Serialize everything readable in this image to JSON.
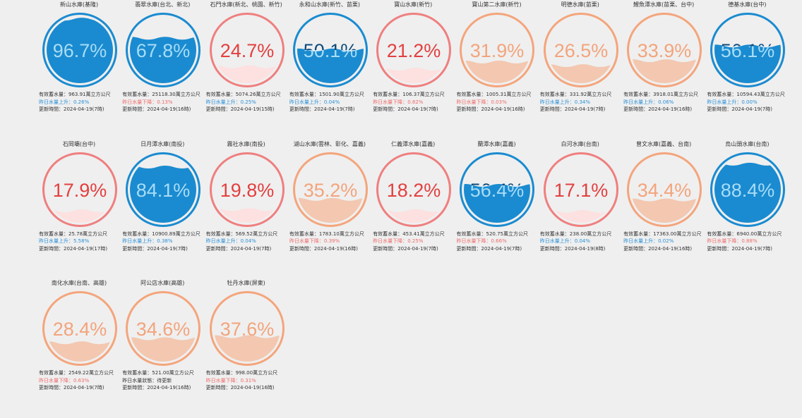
{
  "labels": {
    "storage_prefix": "有效蓄水量：",
    "storage_unit": "萬立方公尺",
    "up": "昨日水量上升：",
    "down": "昨日水量下降：",
    "status": "昨日水量狀態：",
    "updated": "更新時間："
  },
  "colors": {
    "high": "#1a8bd0",
    "mid": "#f4a57c",
    "low": "#ef7f7f",
    "background": "#efefef"
  },
  "reservoirs": [
    {
      "name": "新山水庫(基隆)",
      "percent": "96.7%",
      "value": 96.7,
      "storage": "963.91",
      "trend": "up",
      "change": "0.26%",
      "updated": "2024-04-19(7時)"
    },
    {
      "name": "翡翠水庫(台北、新北)",
      "percent": "67.8%",
      "value": 67.8,
      "storage": "25118.30",
      "trend": "down",
      "change": "0.13%",
      "updated": "2024-04-19(16時)"
    },
    {
      "name": "石門水庫(新北、桃園、新竹)",
      "percent": "24.7%",
      "value": 24.7,
      "storage": "5074.26",
      "trend": "up",
      "change": "0.25%",
      "updated": "2024-04-19(15時)"
    },
    {
      "name": "永和山水庫(新竹、苗栗)",
      "percent": "50.1%",
      "value": 50.1,
      "storage": "1501.90",
      "trend": "up",
      "change": "0.04%",
      "updated": "2024-04-19(7時)"
    },
    {
      "name": "寶山水庫(新竹)",
      "percent": "21.2%",
      "value": 21.2,
      "storage": "106.37",
      "trend": "down",
      "change": "0.82%",
      "updated": "2024-04-19(7時)"
    },
    {
      "name": "寶山第二水庫(新竹)",
      "percent": "31.9%",
      "value": 31.9,
      "storage": "1005.31",
      "trend": "down",
      "change": "0.03%",
      "updated": "2024-04-19(16時)"
    },
    {
      "name": "明德水庫(苗栗)",
      "percent": "26.5%",
      "value": 26.5,
      "storage": "331.92",
      "trend": "up",
      "change": "0.34%",
      "updated": "2024-04-19(7時)"
    },
    {
      "name": "鯉魚潭水庫(苗栗、台中)",
      "percent": "33.9%",
      "value": 33.9,
      "storage": "3918.01",
      "trend": "up",
      "change": "0.06%",
      "updated": "2024-04-19(16時)"
    },
    {
      "name": "德基水庫(台中)",
      "percent": "56.1%",
      "value": 56.1,
      "storage": "10594.43",
      "trend": "up",
      "change": "0.00%",
      "updated": "2024-04-19(7時)"
    },
    {
      "name": "石岡壩(台中)",
      "percent": "17.9%",
      "value": 17.9,
      "storage": "25.78",
      "trend": "up",
      "change": "5.58%",
      "updated": "2024-04-19(17時)"
    },
    {
      "name": "日月潭水庫(南投)",
      "percent": "84.1%",
      "value": 84.1,
      "storage": "10900.89",
      "trend": "up",
      "change": "0.38%",
      "updated": "2024-04-19(7時)"
    },
    {
      "name": "霧社水庫(南投)",
      "percent": "19.8%",
      "value": 19.8,
      "storage": "569.52",
      "trend": "up",
      "change": "0.04%",
      "updated": "2024-04-19(7時)"
    },
    {
      "name": "湖山水庫(雲林、彰化、嘉義)",
      "percent": "35.2%",
      "value": 35.2,
      "storage": "1783.10",
      "trend": "down",
      "change": "0.39%",
      "updated": "2024-04-19(16時)"
    },
    {
      "name": "仁義潭水庫(嘉義)",
      "percent": "18.2%",
      "value": 18.2,
      "storage": "453.41",
      "trend": "down",
      "change": "0.25%",
      "updated": "2024-04-19(7時)"
    },
    {
      "name": "蘭潭水庫(嘉義)",
      "percent": "56.4%",
      "value": 56.4,
      "storage": "520.75",
      "trend": "down",
      "change": "0.66%",
      "updated": "2024-04-19(7時)"
    },
    {
      "name": "白河水庫(台南)",
      "percent": "17.1%",
      "value": 17.1,
      "storage": "238.00",
      "trend": "up",
      "change": "0.04%",
      "updated": "2024-04-19(8時)"
    },
    {
      "name": "曾文水庫(嘉義、台南)",
      "percent": "34.4%",
      "value": 34.4,
      "storage": "17363.00",
      "trend": "up",
      "change": "0.02%",
      "updated": "2024-04-19(16時)"
    },
    {
      "name": "烏山頭水庫(台南)",
      "percent": "88.4%",
      "value": 88.4,
      "storage": "6940.00",
      "trend": "down",
      "change": "0.88%",
      "updated": "2024-04-19(7時)"
    },
    {
      "name": "南化水庫(台南、高雄)",
      "percent": "28.4%",
      "value": 28.4,
      "storage": "2549.22",
      "trend": "down",
      "change": "0.63%",
      "updated": "2024-04-19(7時)"
    },
    {
      "name": "阿公店水庫(高雄)",
      "percent": "34.6%",
      "value": 34.6,
      "storage": "521.00",
      "trend": "status",
      "change": "待更新",
      "updated": "2024-04-19(16時)"
    },
    {
      "name": "牡丹水庫(屏東)",
      "percent": "37.6%",
      "value": 37.6,
      "storage": "998.00",
      "trend": "down",
      "change": "0.31%",
      "updated": "2024-04-19(16時)"
    }
  ]
}
